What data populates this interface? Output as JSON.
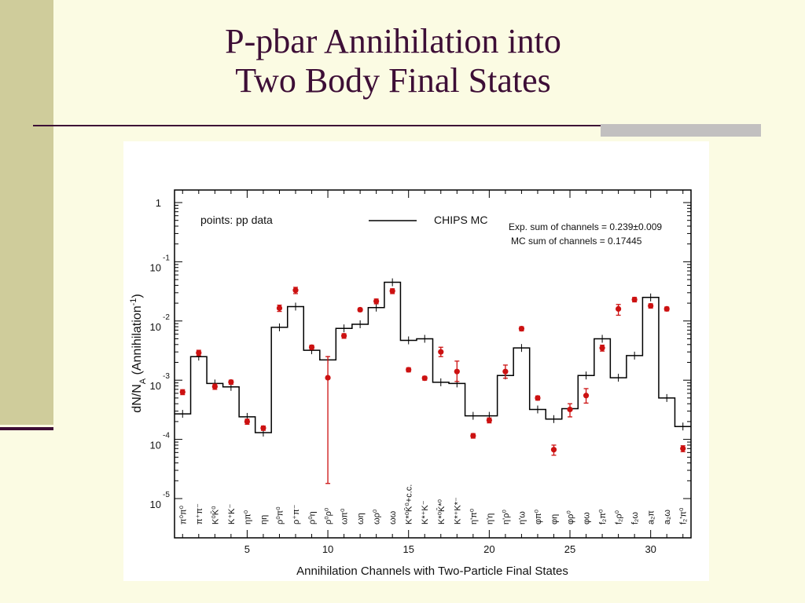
{
  "slide": {
    "title_line1": "P-pbar Annihilation into",
    "title_line2": "Two Body Final States"
  },
  "colors": {
    "title": "#3d0e36",
    "background": "#fbfbe3",
    "side_bar": "#cfcc9b",
    "data_points": "#cc1111",
    "mc_line": "#000000"
  },
  "chart_data": {
    "type": "scatter",
    "title": "",
    "xlabel": "Annihilation Channels with Two-Particle Final States",
    "ylabel": "dN/NA (Annihilation-1)",
    "ylabel_main": "dN/N",
    "ylabel_sub": "A",
    "ylabel_paren": " (Annihilation",
    "ylabel_sup": "-1",
    "ylabel_close": ")",
    "log_y": true,
    "xlim": [
      0.5,
      32.5
    ],
    "ylim": [
      1e-05,
      1
    ],
    "x_ticks": [
      5,
      10,
      15,
      20,
      25,
      30
    ],
    "y_ticks": [
      {
        "base": "1",
        "exp": ""
      },
      {
        "base": "10",
        "exp": "-1"
      },
      {
        "base": "10",
        "exp": "-2"
      },
      {
        "base": "10",
        "exp": "-3"
      },
      {
        "base": "10",
        "exp": "-4"
      },
      {
        "base": "10",
        "exp": "-5"
      }
    ],
    "legend_points": "points: pp data",
    "legend_mc": "CHIPS MC",
    "annotation_exp": "Exp. sum of channels = 0.239±0.009",
    "annotation_mc": "MC sum of channels  = 0.17445",
    "channels": [
      "π⁰π⁰",
      "π⁺π⁻",
      "K⁰K̄⁰",
      "K⁺K⁻",
      "ηπ⁰",
      "ηη",
      "ρ⁰π⁰",
      "ρ⁺π⁻",
      "ρ⁰η",
      "ρ⁰ρ⁰",
      "ωπ⁰",
      "ωη",
      "ωρ⁰",
      "ωω",
      "K*⁰K̄⁰+c.c.",
      "K*⁺K⁻",
      "K*⁰K̄*⁰",
      "K*⁺K*⁻",
      "η'π⁰",
      "η'η",
      "η'ρ⁰",
      "η'ω",
      "φπ⁰",
      "φη",
      "φρ⁰",
      "φω",
      "f₂π⁰",
      "f₂ρ⁰",
      "f₂ω",
      "a₂π",
      "a₂ω",
      "f₂'π⁰"
    ],
    "series": [
      {
        "name": "pp data",
        "x": [
          1,
          2,
          3,
          4,
          5,
          6,
          7,
          8,
          9,
          10,
          11,
          12,
          13,
          14,
          15,
          16,
          17,
          18,
          19,
          20,
          21,
          22,
          23,
          24,
          25,
          26,
          27,
          28,
          29,
          30,
          31,
          32
        ],
        "y": [
          0.00063,
          0.0029,
          0.00078,
          0.00093,
          0.0002,
          0.000155,
          0.0165,
          0.033,
          0.0036,
          0.0011,
          0.0056,
          0.0155,
          0.0215,
          0.032,
          0.0015,
          0.00108,
          0.003,
          0.0014,
          0.000115,
          0.00021,
          0.0014,
          0.0074,
          0.0005,
          6.7e-05,
          0.00032,
          0.00055,
          0.0035,
          0.016,
          0.023,
          0.018,
          0.016,
          7e-05
        ],
        "err_lo": [
          0.00057,
          0.0026,
          0.0007,
          0.00085,
          0.00018,
          0.000142,
          0.0145,
          0.029,
          0.0033,
          1.8e-05,
          0.0051,
          0.0145,
          0.0195,
          0.029,
          0.00138,
          0.001,
          0.0025,
          0.00095,
          0.000105,
          0.00019,
          0.00108,
          0.0068,
          0.00046,
          5.4e-05,
          0.00024,
          0.00041,
          0.0031,
          0.0125,
          0.021,
          0.0165,
          0.0148,
          6.2e-05
        ],
        "err_hi": [
          0.00069,
          0.0032,
          0.00086,
          0.001,
          0.00022,
          0.000168,
          0.0185,
          0.037,
          0.0039,
          0.0025,
          0.0061,
          0.0165,
          0.0235,
          0.035,
          0.00162,
          0.00116,
          0.0036,
          0.0021,
          0.000125,
          0.00023,
          0.0018,
          0.008,
          0.00054,
          8e-05,
          0.0004,
          0.00072,
          0.0039,
          0.019,
          0.025,
          0.0195,
          0.0172,
          7.8e-05
        ]
      },
      {
        "name": "CHIPS MC",
        "x": [
          1,
          2,
          3,
          4,
          5,
          6,
          7,
          8,
          9,
          10,
          11,
          12,
          13,
          14,
          15,
          16,
          17,
          18,
          19,
          20,
          21,
          22,
          23,
          24,
          25,
          26,
          27,
          28,
          29,
          30,
          31,
          32
        ],
        "y": [
          0.00027,
          0.0025,
          0.00088,
          0.00077,
          0.00024,
          0.00013,
          0.0078,
          0.0175,
          0.0032,
          0.0022,
          0.0075,
          0.0088,
          0.0168,
          0.045,
          0.0047,
          0.005,
          0.00092,
          0.00088,
          0.00025,
          0.00025,
          0.0012,
          0.0035,
          0.00032,
          0.00022,
          0.00033,
          0.0012,
          0.005,
          0.0011,
          0.0026,
          0.025,
          0.0005,
          0.000165
        ]
      }
    ]
  }
}
